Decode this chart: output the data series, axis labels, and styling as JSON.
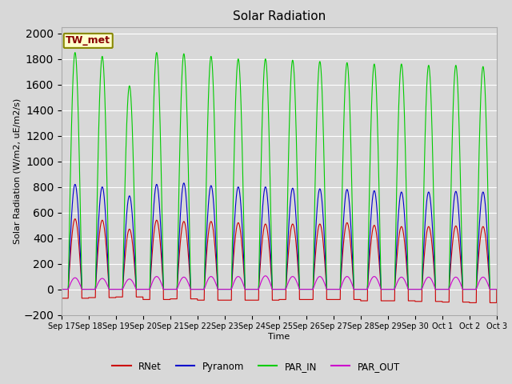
{
  "title": "Solar Radiation",
  "xlabel": "Time",
  "ylabel": "Solar Radiation (W/m2, uE/m2/s)",
  "ylim": [
    -200,
    2050
  ],
  "yticks": [
    -200,
    0,
    200,
    400,
    600,
    800,
    1000,
    1200,
    1400,
    1600,
    1800,
    2000
  ],
  "colors": {
    "RNet": "#cc0000",
    "Pyranom": "#0000cc",
    "PAR_IN": "#00cc00",
    "PAR_OUT": "#cc00cc"
  },
  "fig_bg": "#d8d8d8",
  "plot_bg": "#d8d8d8",
  "station_label": "TW_met",
  "station_label_color": "#880000",
  "station_box_color": "#ffffcc",
  "station_box_border": "#888800",
  "n_days": 16,
  "start_day": 17,
  "par_in_peaks": [
    1850,
    1820,
    1590,
    1850,
    1840,
    1820,
    1800,
    1800,
    1790,
    1780,
    1770,
    1760,
    1760,
    1750,
    1750,
    1740
  ],
  "pyranom_peaks": [
    820,
    800,
    730,
    820,
    830,
    810,
    800,
    800,
    790,
    785,
    780,
    770,
    760,
    760,
    765,
    760
  ],
  "rnet_peaks": [
    550,
    540,
    470,
    540,
    530,
    530,
    520,
    510,
    510,
    510,
    520,
    500,
    490,
    490,
    495,
    490
  ],
  "par_out_peaks": [
    90,
    85,
    80,
    100,
    95,
    100,
    100,
    105,
    100,
    100,
    100,
    100,
    95,
    95,
    95,
    95
  ],
  "rnet_neg_troughs": [
    -70,
    -65,
    -60,
    -80,
    -75,
    -85,
    -85,
    -85,
    -80,
    -80,
    -80,
    -90,
    -90,
    -95,
    -100,
    -105
  ],
  "points_per_day": 288,
  "legend_entries": [
    "RNet",
    "Pyranom",
    "PAR_IN",
    "PAR_OUT"
  ]
}
